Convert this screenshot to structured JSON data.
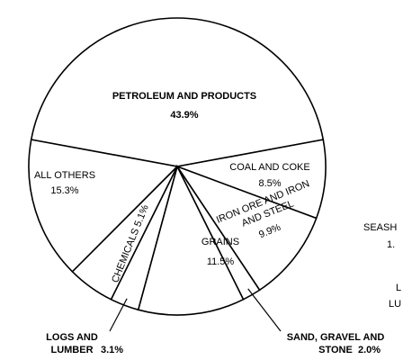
{
  "chart_data": {
    "type": "pie",
    "categories": [
      "PETROLEUM AND PRODUCTS",
      "COAL AND COKE",
      "IRON ORE AND IRON AND STEEL",
      "SAND, GRAVEL AND STONE",
      "GRAINS",
      "LOGS AND LUMBER",
      "CHEMICALS",
      "ALL OTHERS"
    ],
    "values": [
      43.9,
      8.5,
      9.9,
      2.0,
      11.5,
      3.1,
      5.1,
      15.3
    ],
    "value_labels": [
      "43.9%",
      "8.5%",
      "9.9%",
      "2.0%",
      "11.5%",
      "3.1%",
      "5.1%",
      "15.3%"
    ],
    "color": "#ffffff",
    "annotations": [
      "SEASH",
      "1.",
      "L",
      "LU"
    ]
  }
}
